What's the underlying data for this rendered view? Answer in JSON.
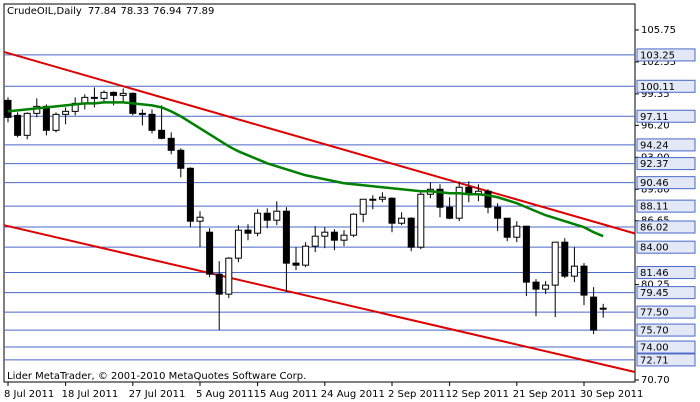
{
  "chart_data": {
    "type": "candlestick",
    "title": "CrudeOIL,Daily",
    "footer": "Lider MetaTrader, © 2001-2010 MetaQuotes Software Corp.",
    "categories": [
      "8 Jul 2011",
      null,
      null,
      null,
      null,
      null,
      "18 Jul 2011",
      null,
      null,
      null,
      null,
      null,
      null,
      "27 Jul 2011",
      null,
      null,
      null,
      null,
      null,
      null,
      "5 Aug 2011",
      null,
      null,
      null,
      null,
      null,
      "15 Aug 2011",
      null,
      null,
      null,
      null,
      null,
      null,
      "24 Aug 2011",
      null,
      null,
      null,
      null,
      null,
      null,
      "2 Sep 2011",
      null,
      null,
      null,
      null,
      null,
      "12 Sep 2011",
      null,
      null,
      null,
      null,
      null,
      null,
      "21 Sep 2011",
      null,
      null,
      null,
      null,
      null,
      null,
      "30 Sep 2011",
      null,
      null
    ],
    "open": [
      98.7,
      97.2,
      95.2,
      97.4,
      98.1,
      95.7,
      97.3,
      97.6,
      98.4,
      99.0,
      98.9,
      99.5,
      99.2,
      99.4,
      97.4,
      97.3,
      95.7,
      94.9,
      93.7,
      91.9,
      86.6,
      85.5,
      81.3,
      79.3,
      82.9,
      85.7,
      85.4,
      87.4,
      86.7,
      87.6,
      82.4,
      82.2,
      84.1,
      85.1,
      85.5,
      84.7,
      85.2,
      87.3,
      88.8,
      88.8,
      88.9,
      86.4,
      86.9,
      84.0,
      89.3,
      89.8,
      88.0,
      86.9,
      90.0,
      89.3,
      89.6,
      88.0,
      86.9,
      85.0,
      86.1,
      80.5,
      79.8,
      80.2,
      84.5,
      81.1,
      82.1,
      79.0,
      77.84
    ],
    "high": [
      99.0,
      97.5,
      97.5,
      98.9,
      98.3,
      97.5,
      98.0,
      99.0,
      99.3,
      100.0,
      99.7,
      99.6,
      99.9,
      99.5,
      97.8,
      97.8,
      98.2,
      95.5,
      93.9,
      92.0,
      87.6,
      85.9,
      82.6,
      83.0,
      86.2,
      86.3,
      87.8,
      87.9,
      88.6,
      88.0,
      84.0,
      84.5,
      86.1,
      86.0,
      85.8,
      85.7,
      87.4,
      88.8,
      89.2,
      89.5,
      89.0,
      87.5,
      87.0,
      89.5,
      90.5,
      90.3,
      89.0,
      90.6,
      90.6,
      90.3,
      89.8,
      88.4,
      86.9,
      86.6,
      86.1,
      80.8,
      80.6,
      84.5,
      84.9,
      84.0,
      82.4,
      80.0,
      78.33
    ],
    "low": [
      96.5,
      95.0,
      94.8,
      97.0,
      95.2,
      95.5,
      96.3,
      97.2,
      97.8,
      98.0,
      98.5,
      98.2,
      98.6,
      97.2,
      96.2,
      95.4,
      94.8,
      93.3,
      91.0,
      86.0,
      84.0,
      81.0,
      75.7,
      78.9,
      82.5,
      84.7,
      85.1,
      85.9,
      86.2,
      79.5,
      81.7,
      82.0,
      83.5,
      83.9,
      83.7,
      84.1,
      85.0,
      86.5,
      87.8,
      88.5,
      85.5,
      86.2,
      83.6,
      83.8,
      88.9,
      87.0,
      86.8,
      86.6,
      88.5,
      88.6,
      87.4,
      85.6,
      84.6,
      84.5,
      79.1,
      77.1,
      79.3,
      77.0,
      80.9,
      80.5,
      78.2,
      75.3,
      76.94
    ],
    "close": [
      97.0,
      95.2,
      97.4,
      98.1,
      95.7,
      97.3,
      97.6,
      98.4,
      99.0,
      98.9,
      99.5,
      99.2,
      99.4,
      97.4,
      97.3,
      95.7,
      94.9,
      93.7,
      91.9,
      86.6,
      87.0,
      81.3,
      79.3,
      82.9,
      85.7,
      85.4,
      87.4,
      86.7,
      87.6,
      82.4,
      82.2,
      84.1,
      85.1,
      85.5,
      84.7,
      85.2,
      87.3,
      88.8,
      88.8,
      89.0,
      86.4,
      86.9,
      84.0,
      89.3,
      89.8,
      88.0,
      86.9,
      90.0,
      89.3,
      89.6,
      88.0,
      86.9,
      85.0,
      86.1,
      80.5,
      79.8,
      80.2,
      84.5,
      81.1,
      82.1,
      79.2,
      75.7,
      77.89
    ],
    "up_color": "#ffffff",
    "down_color": "#000000",
    "moving_average": {
      "color": "#008000",
      "values": [
        97.6,
        97.7,
        97.8,
        97.9,
        98.0,
        98.1,
        98.2,
        98.3,
        98.4,
        98.4,
        98.5,
        98.5,
        98.5,
        98.4,
        98.3,
        98.2,
        98.0,
        97.6,
        97.1,
        96.5,
        95.9,
        95.3,
        94.7,
        94.1,
        93.6,
        93.2,
        92.8,
        92.4,
        92.1,
        91.8,
        91.5,
        91.2,
        91.0,
        90.8,
        90.6,
        90.4,
        90.3,
        90.2,
        90.1,
        90.0,
        89.9,
        89.8,
        89.7,
        89.6,
        89.6,
        89.5,
        89.4,
        89.4,
        89.3,
        89.3,
        89.2,
        89.0,
        88.7,
        88.4,
        88.0,
        87.6,
        87.2,
        86.9,
        86.6,
        86.3,
        86.0,
        85.5,
        85.1
      ]
    },
    "trendlines": [
      {
        "color": "#dd0000",
        "values": [
          103.55,
          85.37
        ]
      },
      {
        "color": "#dd0000",
        "values": [
          86.2,
          71.5
        ]
      }
    ],
    "levels": {
      "color": "#4a68c8",
      "values": [
        103.25,
        100.11,
        97.11,
        94.24,
        92.37,
        90.46,
        88.11,
        86.02,
        {
          "value": 84,
          "label": "84.00"
        },
        81.46,
        79.45,
        {
          "value": 77.5,
          "label": "77.50"
        },
        {
          "value": 75.7,
          "label": "75.70"
        },
        {
          "value": 74,
          "label": "74.00"
        },
        72.71
      ]
    },
    "ylim": [
      70.5,
      108.35
    ],
    "yticks": [
      105.75,
      102.55,
      99.35,
      {
        "value": 96.2,
        "label": "96.20"
      },
      {
        "value": 93,
        "label": "93.00"
      },
      {
        "value": 89.8,
        "label": "89.80"
      },
      86.65,
      80.25,
      {
        "value": 70.7,
        "label": "70.70"
      }
    ]
  }
}
